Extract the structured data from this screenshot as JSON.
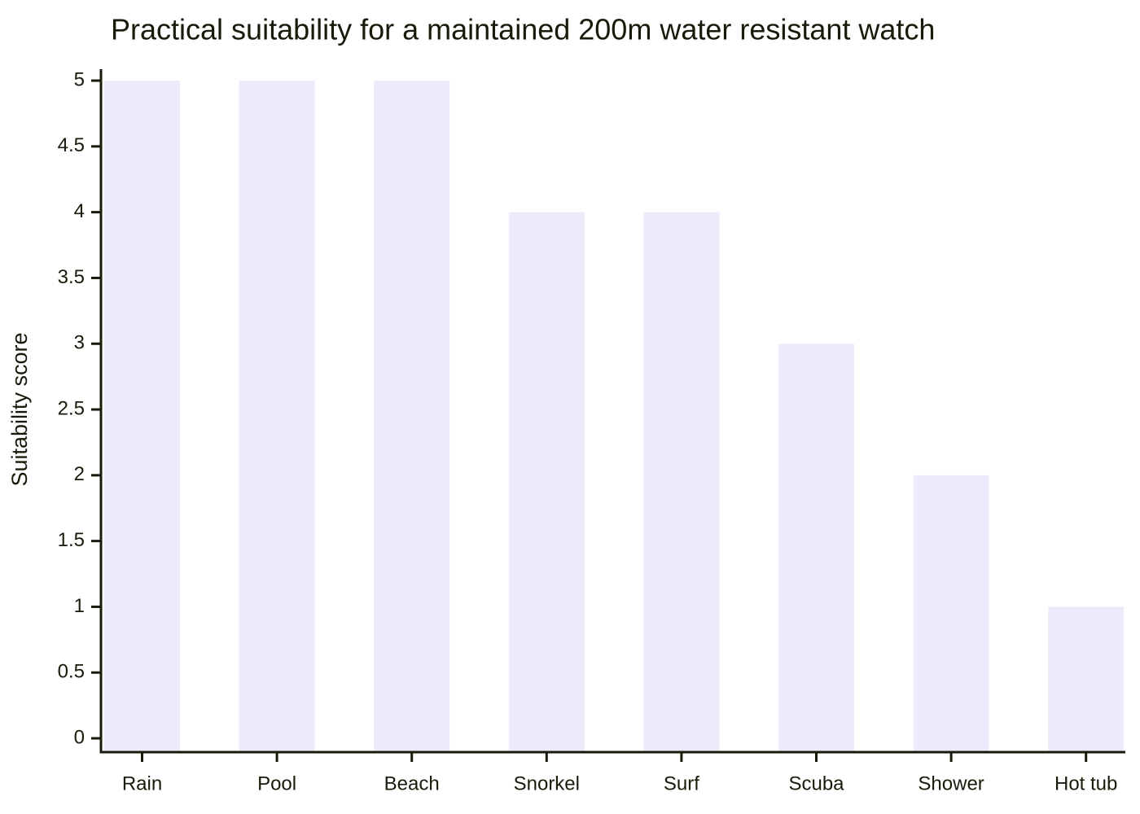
{
  "chart_data": {
    "type": "bar",
    "title": "Practical suitability for a maintained 200m water resistant watch",
    "y_label": "Suitability score",
    "categories": [
      "Rain",
      "Pool",
      "Beach",
      "Snorkel",
      "Surf",
      "Scuba",
      "Shower",
      "Hot tub"
    ],
    "values": [
      5,
      5,
      5,
      4,
      4,
      3,
      2,
      1
    ],
    "color": "#ebebfc",
    "ylim": [
      -0.105,
      5.087
    ],
    "yticks": [
      0,
      0.5,
      1,
      1.5,
      2,
      2.5,
      3,
      3.5,
      4,
      4.5,
      5
    ],
    "grid": false
  }
}
